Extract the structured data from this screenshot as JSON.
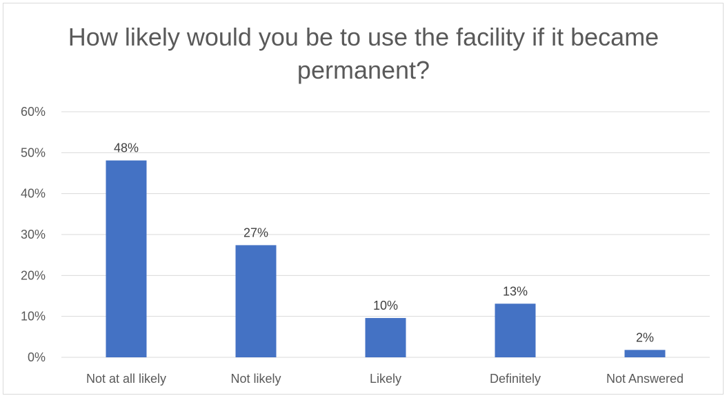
{
  "chart_data": {
    "type": "bar",
    "title": "How likely would you be to use the facility if it became permanent?",
    "categories": [
      "Not at all likely",
      "Not likely",
      "Likely",
      "Definitely",
      "Not Answered"
    ],
    "values": [
      48.1,
      27.4,
      9.6,
      13.1,
      1.8
    ],
    "data_labels": [
      "48%",
      "27%",
      "10%",
      "13%",
      "2%"
    ],
    "ylim": [
      0,
      60
    ],
    "yticks": [
      0,
      10,
      20,
      30,
      40,
      50,
      60
    ],
    "ytick_labels": [
      "0%",
      "10%",
      "20%",
      "30%",
      "40%",
      "50%",
      "60%"
    ],
    "xlabel": "",
    "ylabel": "",
    "grid": true,
    "legend": "none",
    "bar_color": "#4472c4",
    "grid_color": "#d9d9d9"
  }
}
